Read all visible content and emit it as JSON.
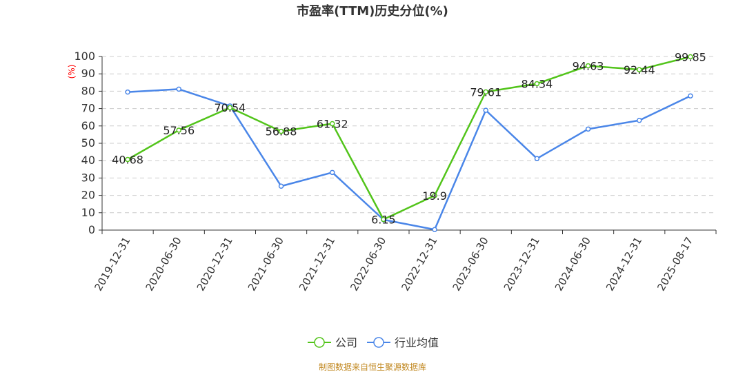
{
  "chart_data": {
    "type": "line",
    "title": "市盈率(TTM)历史分位(%)",
    "ylabel": "(%)",
    "ylim": [
      0,
      100
    ],
    "yticks": [
      0,
      10,
      20,
      30,
      40,
      50,
      60,
      70,
      80,
      90,
      100
    ],
    "grid": true,
    "legend_position": "bottom",
    "categories": [
      "2019-12-31",
      "2020-06-30",
      "2020-12-31",
      "2021-06-30",
      "2021-12-31",
      "2022-06-30",
      "2022-12-31",
      "2023-06-30",
      "2023-12-31",
      "2024-06-30",
      "2024-12-31",
      "2025-08-17"
    ],
    "series": [
      {
        "name": "公司",
        "color": "#52c41a",
        "values": [
          40.68,
          57.56,
          70.54,
          56.88,
          61.32,
          6.15,
          19.9,
          79.61,
          84.34,
          94.63,
          92.44,
          99.85
        ],
        "labels": [
          "40.68",
          "57.56",
          "70.54",
          "56.88",
          "61.32",
          "6.15",
          "19.9",
          "79.61",
          "84.34",
          "94.63",
          "92.44",
          "99.85"
        ]
      },
      {
        "name": "行业均值",
        "color": "#4a86e8",
        "values": [
          79.5,
          81.2,
          71.5,
          25.3,
          33.2,
          6.0,
          0.3,
          69.0,
          41.2,
          58.2,
          63.2,
          77.3
        ]
      }
    ],
    "source": "制图数据来自恒生聚源数据库"
  }
}
